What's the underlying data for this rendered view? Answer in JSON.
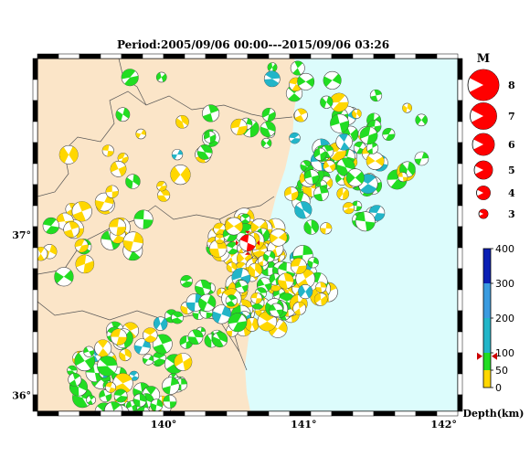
{
  "title": "Period:2005/09/06 00:00---2015/09/06 03:26",
  "lat_labels": [
    {
      "text": "37°",
      "lat": 37.0
    },
    {
      "text": "36°",
      "lat": 36.0
    }
  ],
  "lon_labels": [
    {
      "text": "140°",
      "lon": 140.0
    },
    {
      "text": "141°",
      "lon": 141.0
    },
    {
      "text": "142°",
      "lon": 142.0
    }
  ],
  "extent": {
    "lon_min": 139.1,
    "lon_max": 142.1,
    "lat_min": 35.9,
    "lat_max": 38.1
  },
  "colors": {
    "land": "#fbe5c8",
    "sea": "#dcfcfc",
    "shallow": "#ffd700",
    "mid": "#22dd22",
    "deep": "#22b5c8",
    "very_deep": "#0a1fb4",
    "mechanism": "#ff0000"
  },
  "magnitude_legend": {
    "title": "M",
    "items": [
      "8",
      "7",
      "6",
      "5",
      "4",
      "3"
    ]
  },
  "depth_scale": {
    "label": "Depth(km)",
    "ticks": [
      "400",
      "300",
      "200",
      "100",
      "50",
      "0"
    ],
    "marker_depth_km": 90
  },
  "main_event": {
    "lon": 140.6,
    "lat": 36.95,
    "depth_km": 90
  },
  "mechanism_clusters": [
    {
      "lon": 140.6,
      "lat": 36.95,
      "spread": 0.22,
      "count": 55,
      "mix": "shallow"
    },
    {
      "lon": 140.65,
      "lat": 36.55,
      "spread": 0.25,
      "count": 40,
      "mix": "shallow"
    },
    {
      "lon": 140.9,
      "lat": 36.7,
      "spread": 0.25,
      "count": 40,
      "mix": "mixed"
    },
    {
      "lon": 141.2,
      "lat": 37.3,
      "spread": 0.35,
      "count": 45,
      "mix": "mixed"
    },
    {
      "lon": 141.5,
      "lat": 37.6,
      "spread": 0.35,
      "count": 30,
      "mix": "green"
    },
    {
      "lon": 139.75,
      "lat": 36.15,
      "spread": 0.35,
      "count": 60,
      "mix": "green"
    },
    {
      "lon": 139.5,
      "lat": 36.95,
      "spread": 0.35,
      "count": 25,
      "mix": "shallow"
    },
    {
      "lon": 139.9,
      "lat": 37.6,
      "spread": 0.5,
      "count": 20,
      "mix": "shallow"
    },
    {
      "lon": 140.2,
      "lat": 36.5,
      "spread": 0.3,
      "count": 20,
      "mix": "green"
    },
    {
      "lon": 140.9,
      "lat": 37.8,
      "spread": 0.35,
      "count": 20,
      "mix": "green"
    }
  ]
}
